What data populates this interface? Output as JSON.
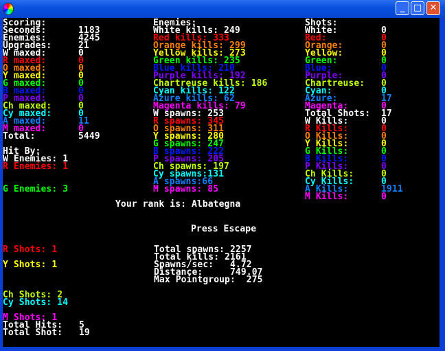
{
  "colors": {
    "W": "#ffffff",
    "R": "#ff0000",
    "O": "#ff8000",
    "Y": "#ffff00",
    "G": "#00ff00",
    "B": "#0018ff",
    "P": "#8000ff",
    "Ch": "#c0ff00",
    "Cy": "#00ffff",
    "A": "#1080ff",
    "M": "#ff00ff"
  },
  "window": {
    "buttons": {
      "minimize": "_",
      "maximize": "□",
      "close": "✕"
    }
  },
  "scoring": [
    {
      "label": "Scoring:",
      "value": "",
      "c": "W"
    },
    {
      "label": "Seconds:",
      "value": "1183",
      "c": "W"
    },
    {
      "label": "Enemies:",
      "value": "4245",
      "c": "W"
    },
    {
      "label": "Upgrades:",
      "value": "21",
      "c": "W"
    },
    {
      "label": "W maxed:",
      "value": "0",
      "c": "W"
    },
    {
      "label": "R maxed:",
      "value": "0",
      "c": "R"
    },
    {
      "label": "O maxed:",
      "value": "0",
      "c": "O"
    },
    {
      "label": "Y maxed:",
      "value": "0",
      "c": "Y"
    },
    {
      "label": "G maxed:",
      "value": "0",
      "c": "G"
    },
    {
      "label": "B maxed:",
      "value": "0",
      "c": "B"
    },
    {
      "label": "P maxed:",
      "value": "0",
      "c": "P"
    },
    {
      "label": "Ch maxed:",
      "value": "0",
      "c": "Ch"
    },
    {
      "label": "Cy maxed:",
      "value": "0",
      "c": "Cy"
    },
    {
      "label": "A maxed:",
      "value": "11",
      "c": "A"
    },
    {
      "label": "M maxed:",
      "value": "0",
      "c": "M"
    },
    {
      "label": "Total:",
      "value": "5449",
      "c": "W"
    }
  ],
  "hit_by": [
    {
      "label": "Hit By:",
      "value": "",
      "c": "W"
    },
    {
      "label": "W Enemies: ",
      "value": "1",
      "c": "W"
    },
    {
      "label": "R Enemies: ",
      "value": "1",
      "c": "R"
    },
    {
      "label": "G Enemies: ",
      "value": "3",
      "c": "G"
    }
  ],
  "enemies": [
    {
      "label": "Enemies:",
      "value": "",
      "c": "W"
    },
    {
      "label": "White kills: ",
      "value": "249",
      "c": "W"
    },
    {
      "label": "Red kills: ",
      "value": "333",
      "c": "R"
    },
    {
      "label": "Orange kills: ",
      "value": "299",
      "c": "O"
    },
    {
      "label": "Yellow kills: ",
      "value": "273",
      "c": "Y"
    },
    {
      "label": "Green kills: ",
      "value": "235",
      "c": "G"
    },
    {
      "label": "Blue kills: ",
      "value": "210",
      "c": "B"
    },
    {
      "label": "Purple kills: ",
      "value": "192",
      "c": "P"
    },
    {
      "label": "Chartreuse kills: ",
      "value": "186",
      "c": "Ch"
    },
    {
      "label": "Cyan kills: ",
      "value": "122",
      "c": "Cy"
    },
    {
      "label": "Azure kills: ",
      "value": "62",
      "c": "A"
    },
    {
      "label": "Magenta kills: ",
      "value": "79",
      "c": "M"
    },
    {
      "label": "W spawns: ",
      "value": "253",
      "c": "W"
    },
    {
      "label": "R spawns: ",
      "value": "345",
      "c": "R"
    },
    {
      "label": "O spawns: ",
      "value": "311",
      "c": "O"
    },
    {
      "label": "Y spawns: ",
      "value": "280",
      "c": "Y"
    },
    {
      "label": "G spawns: ",
      "value": "247",
      "c": "G"
    },
    {
      "label": "B spawns: ",
      "value": "222",
      "c": "B"
    },
    {
      "label": "P spawns: ",
      "value": "205",
      "c": "P"
    },
    {
      "label": "Ch spawns: ",
      "value": "197",
      "c": "Ch"
    },
    {
      "label": "Cy spawns:",
      "value": "131",
      "c": "Cy"
    },
    {
      "label": "A spawns:",
      "value": "66",
      "c": "A"
    },
    {
      "label": "M spawns: ",
      "value": "85",
      "c": "M"
    }
  ],
  "shots": [
    {
      "label": "Shots:",
      "value": "",
      "c": "W"
    },
    {
      "label": "White:",
      "value": "0",
      "c": "W"
    },
    {
      "label": "Red:",
      "value": "0",
      "c": "R"
    },
    {
      "label": "Orange:",
      "value": "0",
      "c": "O"
    },
    {
      "label": "Yellow:",
      "value": "0",
      "c": "Y"
    },
    {
      "label": "Green:",
      "value": "0",
      "c": "G"
    },
    {
      "label": "Blue:",
      "value": "0",
      "c": "B"
    },
    {
      "label": "Purple:",
      "value": "0",
      "c": "P"
    },
    {
      "label": "Chartreuse:",
      "value": "0",
      "c": "Ch"
    },
    {
      "label": "Cyan:",
      "value": "0",
      "c": "Cy"
    },
    {
      "label": "Azure:",
      "value": "17",
      "c": "A"
    },
    {
      "label": "Magenta:",
      "value": "0",
      "c": "M"
    },
    {
      "label": "Total Shots:",
      "value": "17",
      "c": "W"
    },
    {
      "label": "W Kills:",
      "value": "0",
      "c": "W"
    },
    {
      "label": "R Kills:",
      "value": "0",
      "c": "R"
    },
    {
      "label": "O Kills:",
      "value": "0",
      "c": "O"
    },
    {
      "label": "Y Kills:",
      "value": "0",
      "c": "Y"
    },
    {
      "label": "G Kills:",
      "value": "0",
      "c": "G"
    },
    {
      "label": "B Kills:",
      "value": "0",
      "c": "B"
    },
    {
      "label": "P Kills:",
      "value": "0",
      "c": "P"
    },
    {
      "label": "Ch Kills:",
      "value": "0",
      "c": "Ch"
    },
    {
      "label": "Cy Kills:",
      "value": "0",
      "c": "Cy"
    },
    {
      "label": "A Kills:",
      "value": "1911",
      "c": "A"
    },
    {
      "label": "M Kills:",
      "value": "0",
      "c": "M"
    }
  ],
  "rank": "Your rank is: Albategna",
  "press_escape": "Press Escape",
  "shots_hit": [
    {
      "label": "R Shots: ",
      "value": "1",
      "c": "R"
    },
    {
      "label": "Y Shots: ",
      "value": "1",
      "c": "Y"
    },
    {
      "label": "Ch Shots: ",
      "value": "2",
      "c": "Ch"
    },
    {
      "label": "Cy Shots: ",
      "value": "14",
      "c": "Cy"
    },
    {
      "label": "M Shots: ",
      "value": "1",
      "c": "M"
    },
    {
      "label": "Total Hits:   ",
      "value": "5",
      "c": "W"
    },
    {
      "label": "Total Shot:   ",
      "value": "19",
      "c": "W"
    }
  ],
  "totals": [
    {
      "label": "Total spawns: ",
      "value": "2257",
      "c": "W"
    },
    {
      "label": "Total kills: ",
      "value": "2161",
      "c": "W"
    },
    {
      "label": "Spawns/sec:   ",
      "value": "4.72",
      "c": "W"
    },
    {
      "label": "Distance:     ",
      "value": "749.07",
      "c": "W"
    },
    {
      "label": "Max Pointgroup:  ",
      "value": "275",
      "c": "W"
    }
  ]
}
